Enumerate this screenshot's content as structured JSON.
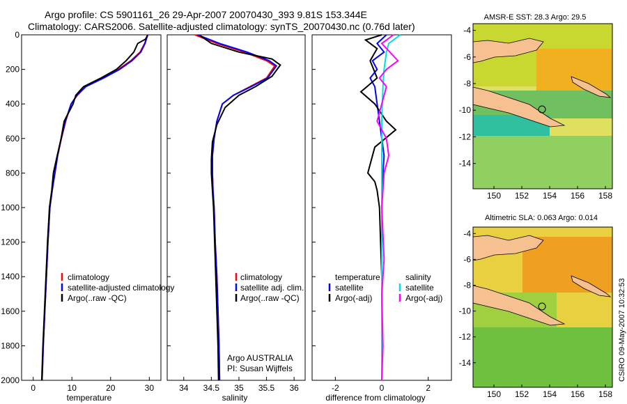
{
  "header": {
    "line1": "Argo profile: CS 5901161_26 29-Apr-2007 20070430_393 9.81S 153.344E",
    "line2": "Climatology: CARS2006. Satellite-adjusted climatology: synTS_20070430.nc (0.76d later)"
  },
  "colors": {
    "climatology": "#ff0000",
    "satellite": "#0000ff",
    "argo": "#000000",
    "sal_satellite": "#00e0e0",
    "sal_argo": "#ff00ff"
  },
  "chart_data": [
    {
      "type": "line",
      "panel": "temperature",
      "xlabel": "temperature",
      "ylabel": "",
      "xlim": [
        -3,
        33
      ],
      "ylim": [
        2000,
        0
      ],
      "xticks": [
        0,
        10,
        20,
        30
      ],
      "yticks": [
        0,
        200,
        400,
        600,
        800,
        1000,
        1200,
        1400,
        1600,
        1800,
        2000
      ],
      "legend": [
        "climatology",
        "satellite-adjusted climatology",
        "Argo(..raw -QC)"
      ],
      "series": [
        {
          "name": "climatology",
          "color": "#ff0000",
          "x": [
            29.5,
            29.2,
            28.8,
            27.6,
            25.2,
            22.0,
            18.0,
            13.5,
            11.4,
            9.8,
            8.4,
            7.3,
            6.3,
            5.6,
            4.9,
            4.3,
            3.8,
            3.4,
            3.0,
            2.6,
            2.3
          ],
          "y": [
            0,
            20,
            50,
            100,
            150,
            200,
            250,
            300,
            350,
            400,
            500,
            600,
            700,
            800,
            900,
            1000,
            1200,
            1400,
            1600,
            1800,
            2000
          ]
        },
        {
          "name": "satellite-adjusted climatology",
          "color": "#0000ff",
          "x": [
            29.6,
            29.3,
            28.9,
            27.8,
            25.5,
            22.3,
            18.2,
            13.6,
            11.3,
            9.8,
            8.3,
            7.2,
            6.3,
            5.6,
            4.9,
            4.3,
            3.8,
            3.4,
            3.0,
            2.6,
            2.3
          ],
          "y": [
            0,
            20,
            50,
            100,
            150,
            200,
            250,
            300,
            350,
            400,
            500,
            600,
            700,
            800,
            900,
            1000,
            1200,
            1400,
            1600,
            1800,
            2000
          ]
        },
        {
          "name": "Argo(..raw -QC)",
          "color": "#000000",
          "x": [
            29.5,
            29.0,
            27.0,
            26.0,
            24.0,
            21.5,
            17.5,
            13.0,
            11.0,
            10.3,
            8.0,
            7.2,
            6.2,
            5.2,
            4.8,
            4.2,
            3.7,
            3.3,
            2.9,
            2.5,
            2.2
          ],
          "y": [
            5,
            25,
            50,
            100,
            150,
            200,
            250,
            300,
            350,
            400,
            500,
            600,
            700,
            800,
            900,
            1000,
            1200,
            1400,
            1600,
            1800,
            2000
          ]
        }
      ]
    },
    {
      "type": "line",
      "panel": "salinity",
      "xlabel": "salinity",
      "ylabel": "",
      "xlim": [
        33.7,
        36.2
      ],
      "ylim": [
        2000,
        0
      ],
      "xticks": [
        34,
        34.5,
        35,
        35.5,
        36
      ],
      "legend": [
        "climatology",
        "satellite adj. clim.",
        "Argo(..raw -QC)"
      ],
      "series": [
        {
          "name": "climatology",
          "color": "#ff0000",
          "x": [
            34.2,
            34.6,
            35.1,
            35.5,
            35.65,
            35.5,
            35.2,
            34.9,
            34.7,
            34.6,
            34.55,
            34.52,
            34.52,
            34.53,
            34.55,
            34.57,
            34.6,
            34.62,
            34.64,
            34.65
          ],
          "y": [
            0,
            50,
            100,
            150,
            180,
            250,
            300,
            350,
            400,
            500,
            600,
            700,
            800,
            900,
            1000,
            1200,
            1400,
            1600,
            1800,
            2000
          ]
        },
        {
          "name": "satellite adj. clim.",
          "color": "#0000ff",
          "x": [
            34.25,
            34.65,
            35.15,
            35.55,
            35.68,
            35.52,
            35.22,
            34.9,
            34.7,
            34.6,
            34.55,
            34.52,
            34.52,
            34.53,
            34.55,
            34.57,
            34.6,
            34.62,
            34.64,
            34.65
          ],
          "y": [
            0,
            50,
            100,
            150,
            180,
            250,
            300,
            350,
            400,
            500,
            600,
            700,
            800,
            900,
            1000,
            1200,
            1400,
            1600,
            1800,
            2000
          ]
        },
        {
          "name": "Argo(..raw -QC)",
          "color": "#000000",
          "x": [
            34.3,
            34.5,
            35.0,
            35.6,
            35.75,
            35.6,
            35.3,
            35.0,
            34.75,
            34.6,
            34.52,
            34.5,
            34.5,
            34.52,
            34.54,
            34.56,
            34.58,
            34.6,
            34.62,
            34.63
          ],
          "y": [
            5,
            50,
            100,
            140,
            175,
            240,
            300,
            350,
            420,
            520,
            620,
            720,
            800,
            900,
            1000,
            1200,
            1400,
            1600,
            1800,
            2000
          ]
        }
      ]
    },
    {
      "type": "line",
      "panel": "difference",
      "xlabel": "difference from climatology",
      "ylabel": "",
      "xlim": [
        -3,
        3
      ],
      "ylim": [
        2000,
        0
      ],
      "xticks": [
        -2,
        0,
        2
      ],
      "legend_left": [
        "temperature",
        "satellite",
        "Argo(-adj)"
      ],
      "legend_right": [
        "salinity",
        "satellite",
        "Argo(-adj)"
      ],
      "series": [
        {
          "name": "satellite",
          "color": "#0000ff",
          "x": [
            0.2,
            -0.2,
            0.1,
            -0.4,
            -0.2,
            -0.5,
            -0.3,
            -0.2,
            -0.1,
            0.0,
            0.1,
            0.05,
            0.0,
            0.0,
            0.0,
            0.0,
            0.0,
            0.0,
            0.0,
            0.0
          ],
          "y": [
            0,
            50,
            100,
            150,
            200,
            250,
            300,
            400,
            500,
            600,
            700,
            800,
            900,
            1000,
            1200,
            1400,
            1600,
            1800,
            1900,
            2000
          ]
        },
        {
          "name": "Argo(-adj)",
          "color": "#000000",
          "x": [
            0.0,
            -0.7,
            -0.2,
            -0.5,
            -0.2,
            -0.9,
            -0.3,
            0.2,
            0.6,
            -0.3,
            -0.5,
            -0.6,
            -0.3,
            -0.2,
            -0.1,
            -0.05,
            0.0,
            0.0,
            0.0,
            0.0
          ],
          "y": [
            0,
            30,
            80,
            150,
            250,
            330,
            400,
            500,
            550,
            650,
            750,
            800,
            850,
            900,
            1000,
            1200,
            1400,
            1600,
            1800,
            2000
          ]
        },
        {
          "name": "satellite",
          "color": "#00e0e0",
          "x": [
            0.8,
            0.3,
            0.2,
            0.1,
            0.05,
            0.0,
            0.0,
            0.0,
            0.0,
            0.0,
            0.0,
            0.0,
            0.0
          ],
          "y": [
            0,
            50,
            100,
            200,
            300,
            500,
            700,
            900,
            1100,
            1400,
            1600,
            1800,
            2000
          ]
        },
        {
          "name": "Argo(-adj)",
          "color": "#ff00ff",
          "x": [
            0.5,
            0.0,
            0.7,
            0.2,
            -0.1,
            0.2,
            0.0,
            -0.2,
            0.2,
            0.3,
            0.1,
            0.0,
            0.1,
            0.0,
            0.05,
            0.0
          ],
          "y": [
            0,
            50,
            150,
            200,
            250,
            300,
            400,
            500,
            600,
            700,
            800,
            1000,
            1300,
            1500,
            1800,
            2000
          ]
        }
      ]
    }
  ],
  "maps": [
    {
      "title": "AMSR-E SST: 28.3 Argo: 29.5",
      "xticks": [
        "150",
        "152",
        "154",
        "156",
        "158"
      ],
      "yticks": [
        "-4",
        "-6",
        "-8",
        "-10",
        "-12",
        "-14"
      ]
    },
    {
      "title": "Altimetric SLA: 0.063 Argo: 0.014",
      "xticks": [
        "150",
        "152",
        "154",
        "156",
        "158"
      ],
      "yticks": [
        "-4",
        "-6",
        "-8",
        "-10",
        "-12",
        "-14"
      ]
    }
  ],
  "credits": {
    "line1": "Argo AUSTRALIA",
    "line2": "PI: Susan Wijffels",
    "side": "CSIRO 09-May-2007 10:32:53"
  }
}
